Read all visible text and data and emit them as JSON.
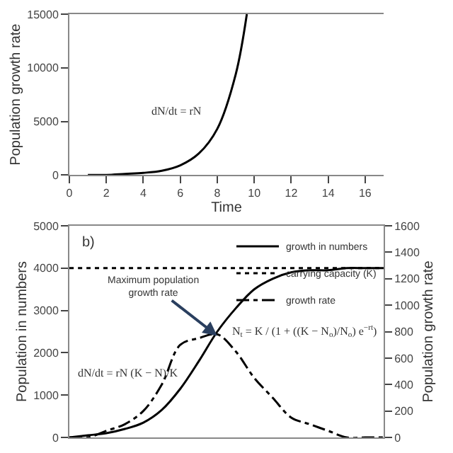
{
  "chart_data": [
    {
      "type": "line",
      "xlabel": "Time",
      "ylabel": "Population growth rate",
      "x": [
        1,
        2,
        3,
        4,
        5,
        6,
        7,
        8,
        9,
        9.6
      ],
      "series": [
        {
          "color": "#000000",
          "line_style": "solid",
          "values": [
            0,
            0,
            100,
            200,
            400,
            900,
            2000,
            4300,
            9400,
            15000
          ]
        }
      ],
      "xlim": [
        0,
        17
      ],
      "xticks": [
        0,
        2,
        4,
        6,
        8,
        10,
        12,
        14,
        16
      ],
      "ylim": [
        0,
        15000
      ],
      "yticks": [
        0,
        5000,
        10000,
        15000
      ],
      "legend": false,
      "marker": "none",
      "annotations": [
        "dN/dt = rN"
      ]
    },
    {
      "type": "line",
      "ylabel": "Population in numbers",
      "y2label": "Population growth rate",
      "x": [
        0,
        1,
        2,
        3,
        4,
        5,
        6,
        7,
        8,
        9,
        10,
        11,
        12,
        13,
        14,
        15,
        16,
        17
      ],
      "series": [
        {
          "name": "growth in numbers",
          "color": "#000000",
          "line_style": "solid",
          "values": [
            0,
            50,
            100,
            200,
            350,
            650,
            1150,
            1800,
            2500,
            3050,
            3500,
            3750,
            3900,
            3950,
            3950,
            4000,
            4000,
            4000
          ]
        },
        {
          "name": "carrying capacity (K)",
          "color": "#000000",
          "line_style": "dotted",
          "values": [
            4000,
            4000,
            4000,
            4000,
            4000,
            4000,
            4000,
            4000,
            4000,
            4000,
            4000,
            4000,
            4000,
            4000,
            4000,
            4000,
            4000,
            4000
          ]
        },
        {
          "name": "growth rate",
          "color": "#000000",
          "line_style": "dashdot",
          "axis": "y2",
          "values": [
            0,
            0,
            50,
            100,
            200,
            400,
            700,
            750,
            780,
            650,
            450,
            300,
            150,
            100,
            50,
            0,
            0,
            0
          ]
        }
      ],
      "xlim": [
        0,
        17
      ],
      "ylim": [
        0,
        5000
      ],
      "yticks": [
        0,
        1000,
        2000,
        3000,
        4000,
        5000
      ],
      "y2lim": [
        0,
        1600
      ],
      "y2ticks": [
        0,
        200,
        400,
        600,
        800,
        1000,
        1200,
        1400,
        1600
      ],
      "tick_labels": "y",
      "legend": "top right",
      "marker": "none",
      "annotations": [
        "b)",
        {
          "text": "Maximum population growth rate",
          "x": 8,
          "y": 2400
        },
        "dN/dt = rN (K − N)/K",
        "N$_{t}$ = K / (1 + ((K − N$_{o}$)/N$_{o}$) e$^{−rt}$)"
      ]
    }
  ]
}
